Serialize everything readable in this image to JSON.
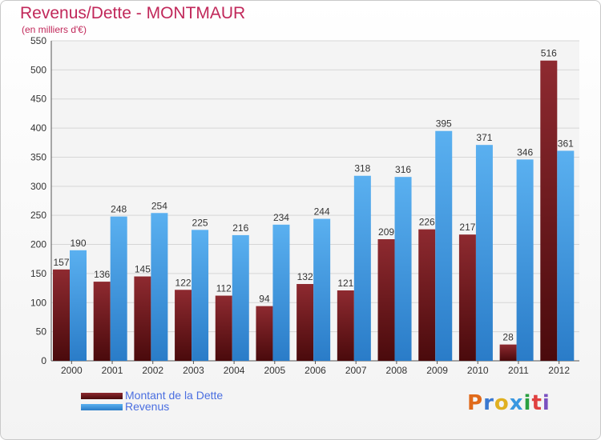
{
  "chart_data": {
    "type": "bar",
    "title": "Revenus/Dette - MONTMAUR",
    "subtitle": "(en milliers d'€)",
    "categories": [
      "2000",
      "2001",
      "2002",
      "2003",
      "2004",
      "2005",
      "2006",
      "2007",
      "2008",
      "2009",
      "2010",
      "2011",
      "2012"
    ],
    "series": [
      {
        "name": "Montant de la Dette",
        "values": [
          157,
          136,
          145,
          122,
          112,
          94,
          132,
          121,
          209,
          226,
          217,
          28,
          516
        ],
        "color": "#7a1a1e"
      },
      {
        "name": "Revenus",
        "values": [
          190,
          248,
          254,
          225,
          216,
          234,
          244,
          318,
          316,
          395,
          371,
          346,
          361
        ],
        "color": "#3a98e0"
      }
    ],
    "ylim": [
      0,
      550
    ],
    "yticks": [
      0,
      50,
      100,
      150,
      200,
      250,
      300,
      350,
      400,
      450,
      500,
      550
    ],
    "grid": true,
    "legend": "bottom-left"
  },
  "branding": {
    "logo_text": "Proxiti",
    "logo_colors": [
      "#e06a1a",
      "#3a78d0",
      "#e0b020",
      "#3a98e0",
      "#2aa040",
      "#e04040",
      "#7a50c0"
    ]
  }
}
